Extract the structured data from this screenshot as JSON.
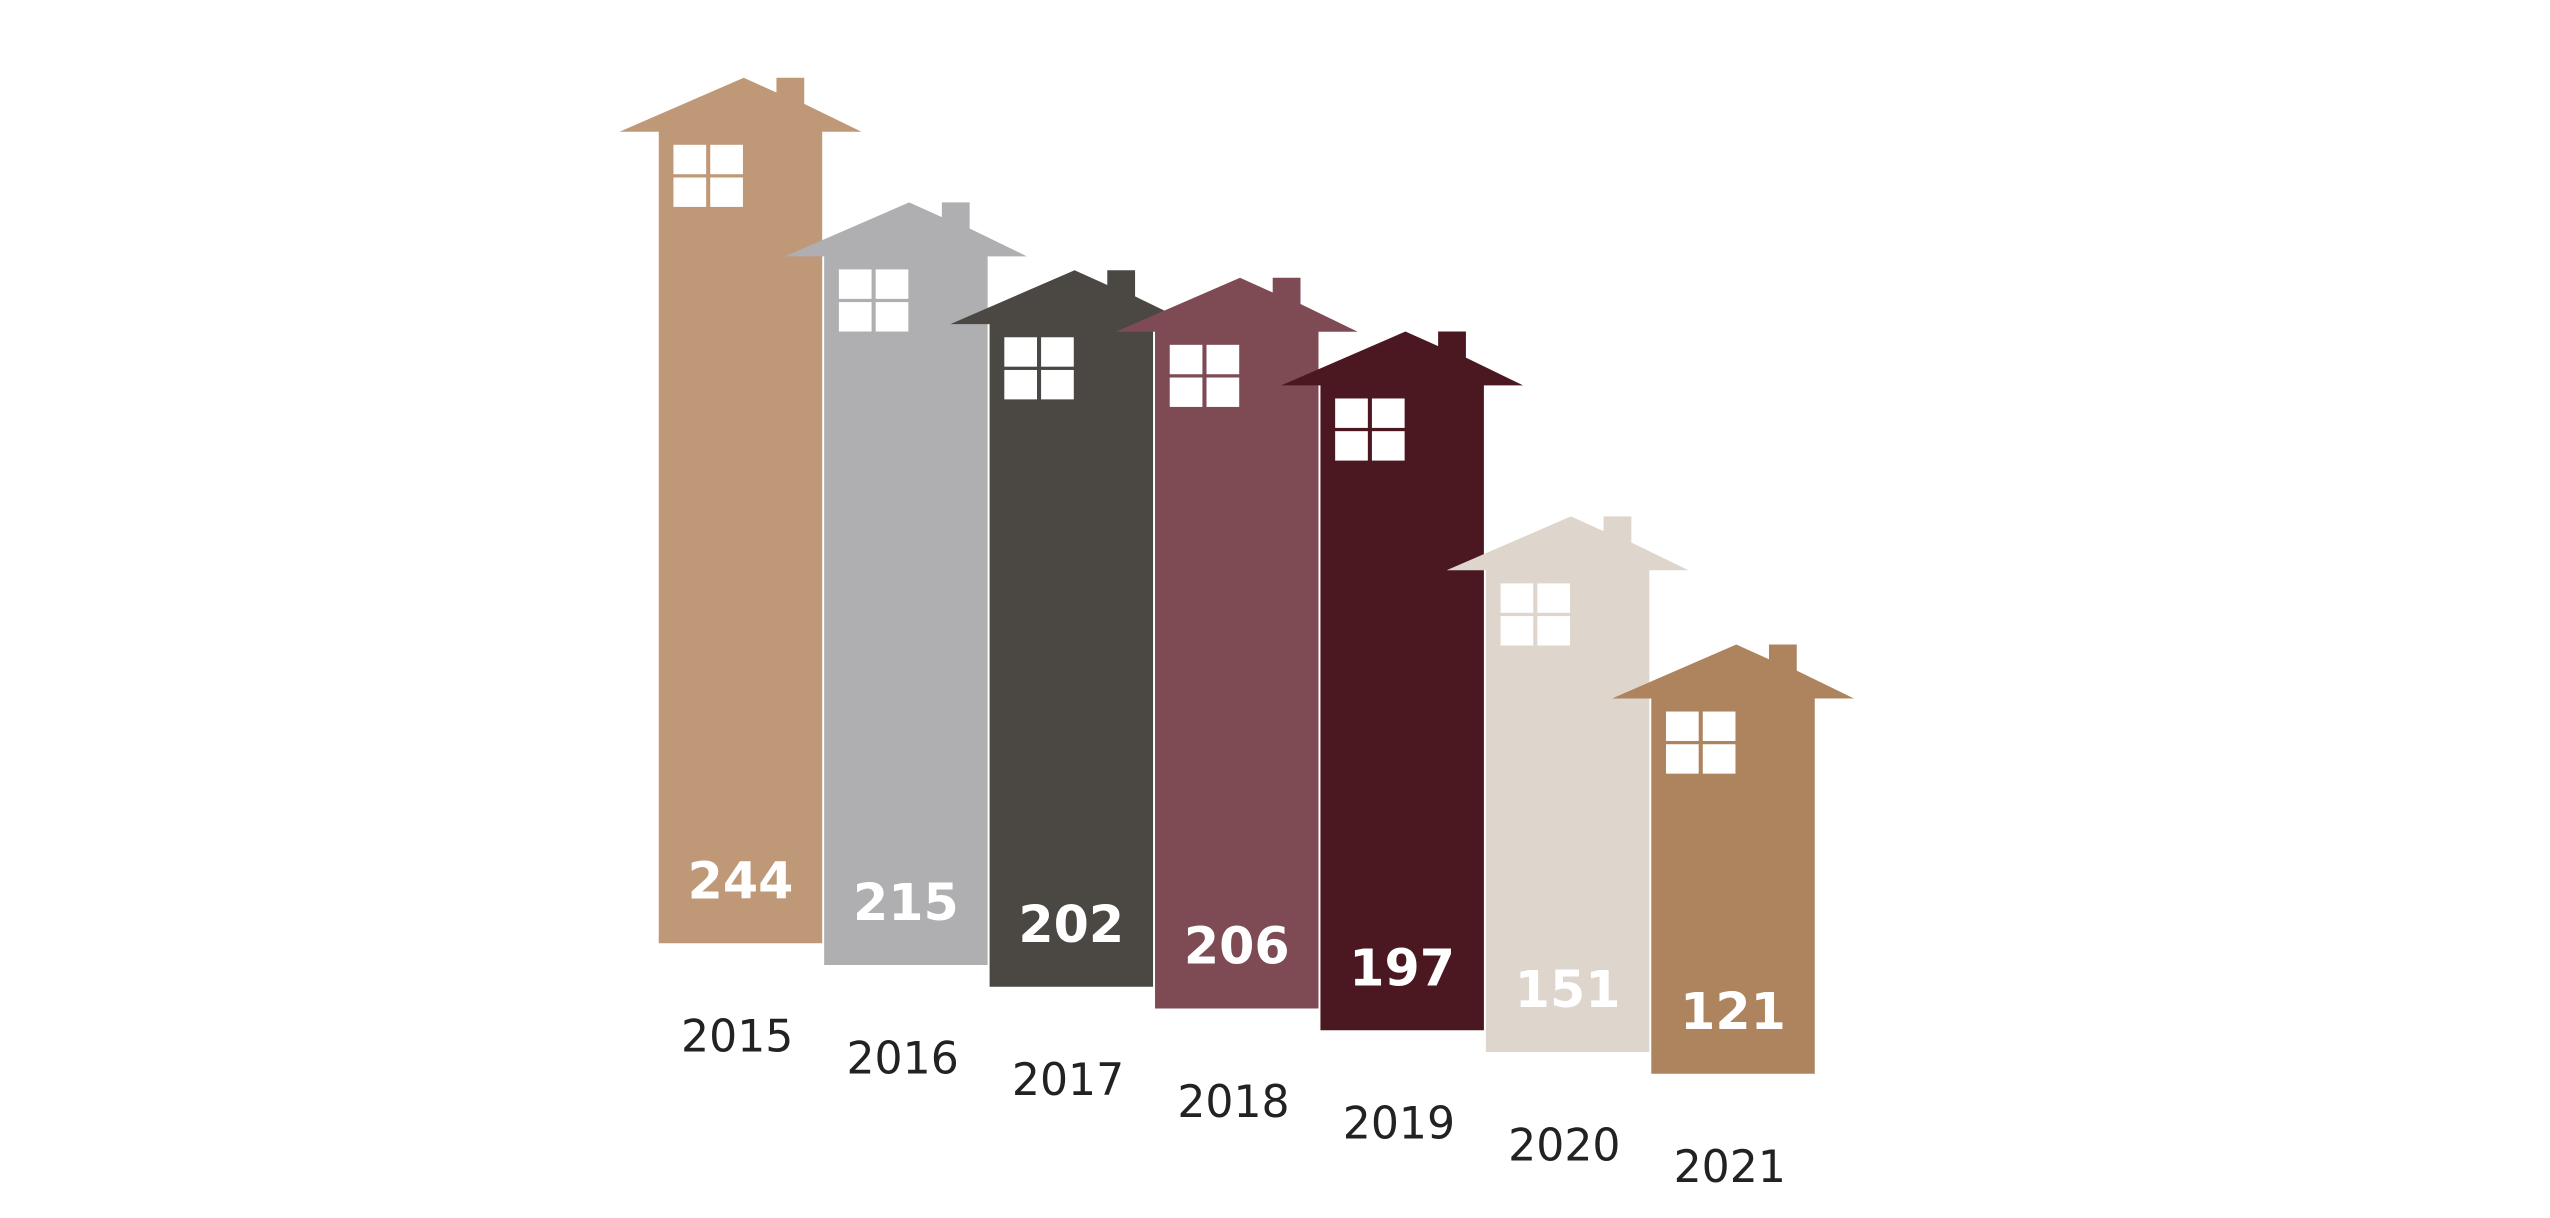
{
  "chart_data": {
    "type": "house",
    "categories": [
      "2015",
      "2016",
      "2017",
      "2018",
      "2019",
      "2020",
      "2021"
    ],
    "values": [
      244,
      215,
      202,
      206,
      197,
      151,
      121
    ],
    "colors": [
      "#bf9878",
      "#afafb1",
      "#4b4743",
      "#7e4b55",
      "#4b1822",
      "#ded5cc",
      "#ae845f"
    ]
  }
}
